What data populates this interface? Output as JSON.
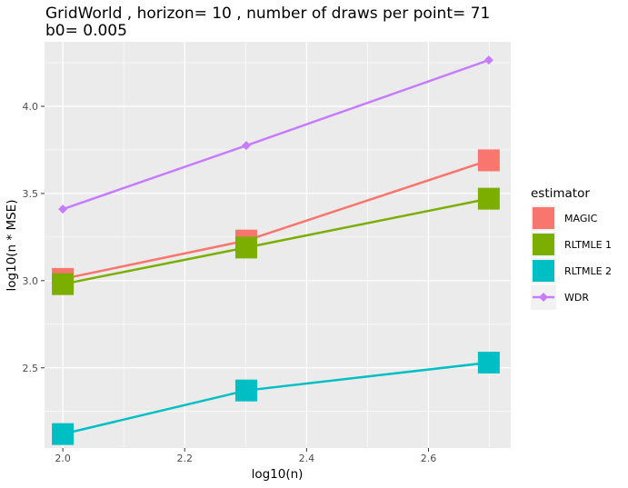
{
  "chart_data": {
    "type": "line",
    "title_line1": "GridWorld , horizon= 10 , number of draws per point= 71",
    "title_line2": "b0= 0.005",
    "xlabel": "log10(n)",
    "ylabel": "log10(n * MSE)",
    "xlim": [
      1.97,
      2.735
    ],
    "ylim": [
      2.04,
      4.37
    ],
    "xticks": [
      2.0,
      2.2,
      2.4,
      2.6
    ],
    "xtick_labels": [
      "2.0",
      "2.2",
      "2.4",
      "2.6"
    ],
    "yticks": [
      2.5,
      3.0,
      3.5,
      4.0
    ],
    "ytick_labels": [
      "2.5",
      "3.0",
      "3.5",
      "4.0"
    ],
    "grid": true,
    "legend_title": "estimator",
    "legend_position": "right",
    "x": [
      2.0,
      2.301,
      2.699
    ],
    "series": [
      {
        "name": "MAGIC",
        "values": [
          3.01,
          3.23,
          3.69
        ],
        "color": "#F8766D",
        "marker": "square"
      },
      {
        "name": "RLTMLE 1",
        "values": [
          2.98,
          3.19,
          3.47
        ],
        "color": "#7CAE00",
        "marker": "square"
      },
      {
        "name": "RLTMLE 2",
        "values": [
          2.12,
          2.37,
          2.53
        ],
        "color": "#00BFC4",
        "marker": "square"
      },
      {
        "name": "WDR",
        "values": [
          3.41,
          3.775,
          4.265
        ],
        "color": "#C77CFF",
        "marker": "diamond"
      }
    ]
  }
}
